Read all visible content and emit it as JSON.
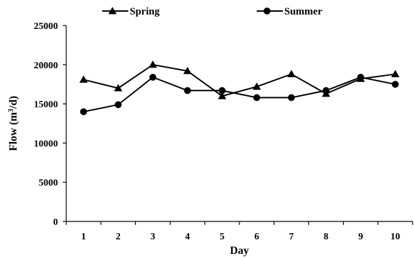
{
  "chart_data": {
    "type": "line",
    "title": "",
    "xlabel": "Day",
    "ylabel": "Flow (m³/d)",
    "ylabel_main": "Flow (m",
    "ylabel_sup": "3",
    "ylabel_tail": "/d)",
    "categories": [
      "1",
      "2",
      "3",
      "4",
      "5",
      "6",
      "7",
      "8",
      "9",
      "10"
    ],
    "x": [
      1,
      2,
      3,
      4,
      5,
      6,
      7,
      8,
      9,
      10
    ],
    "ylim": [
      0,
      25000
    ],
    "yticks": [
      0,
      5000,
      10000,
      15000,
      20000,
      25000
    ],
    "ytick_labels": [
      "0",
      "5000",
      "10000",
      "15000",
      "20000",
      "25000"
    ],
    "grid": false,
    "legend_position": "top",
    "series": [
      {
        "name": "Spring",
        "marker": "triangle",
        "color": "#000000",
        "values": [
          18100,
          17000,
          20000,
          19200,
          16000,
          17200,
          18800,
          16300,
          18200,
          18800
        ]
      },
      {
        "name": "Summer",
        "marker": "circle",
        "color": "#000000",
        "values": [
          14000,
          14900,
          18400,
          16700,
          16700,
          15800,
          15800,
          16700,
          18400,
          17500
        ]
      }
    ]
  }
}
